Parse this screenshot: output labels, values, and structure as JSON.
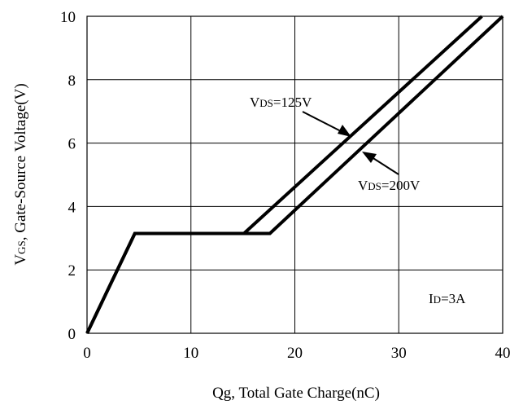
{
  "chart_data": {
    "type": "line",
    "title": "",
    "xlabel": "Qg, Total Gate Charge(nC)",
    "ylabel": {
      "prefix": "V",
      "sub": "GS",
      "rest": ", Gate-Source Voltage(V)"
    },
    "xlim": [
      0,
      40
    ],
    "ylim": [
      0,
      10
    ],
    "xticks": [
      0,
      10,
      20,
      30,
      40
    ],
    "yticks": [
      0,
      2,
      4,
      6,
      8,
      10
    ],
    "grid": true,
    "series": [
      {
        "label_prefix": "V",
        "label_sub": "DS",
        "label_rest": "=125V",
        "x": [
          0,
          4.6,
          15.1,
          38.0
        ],
        "y": [
          0,
          3.15,
          3.15,
          10
        ]
      },
      {
        "label_prefix": "V",
        "label_sub": "DS",
        "label_rest": "=200V",
        "x": [
          0,
          4.6,
          17.6,
          40.0
        ],
        "y": [
          0,
          3.15,
          3.15,
          10
        ]
      }
    ],
    "annotation": {
      "prefix": "I",
      "sub": "D",
      "rest": "=3A"
    }
  }
}
